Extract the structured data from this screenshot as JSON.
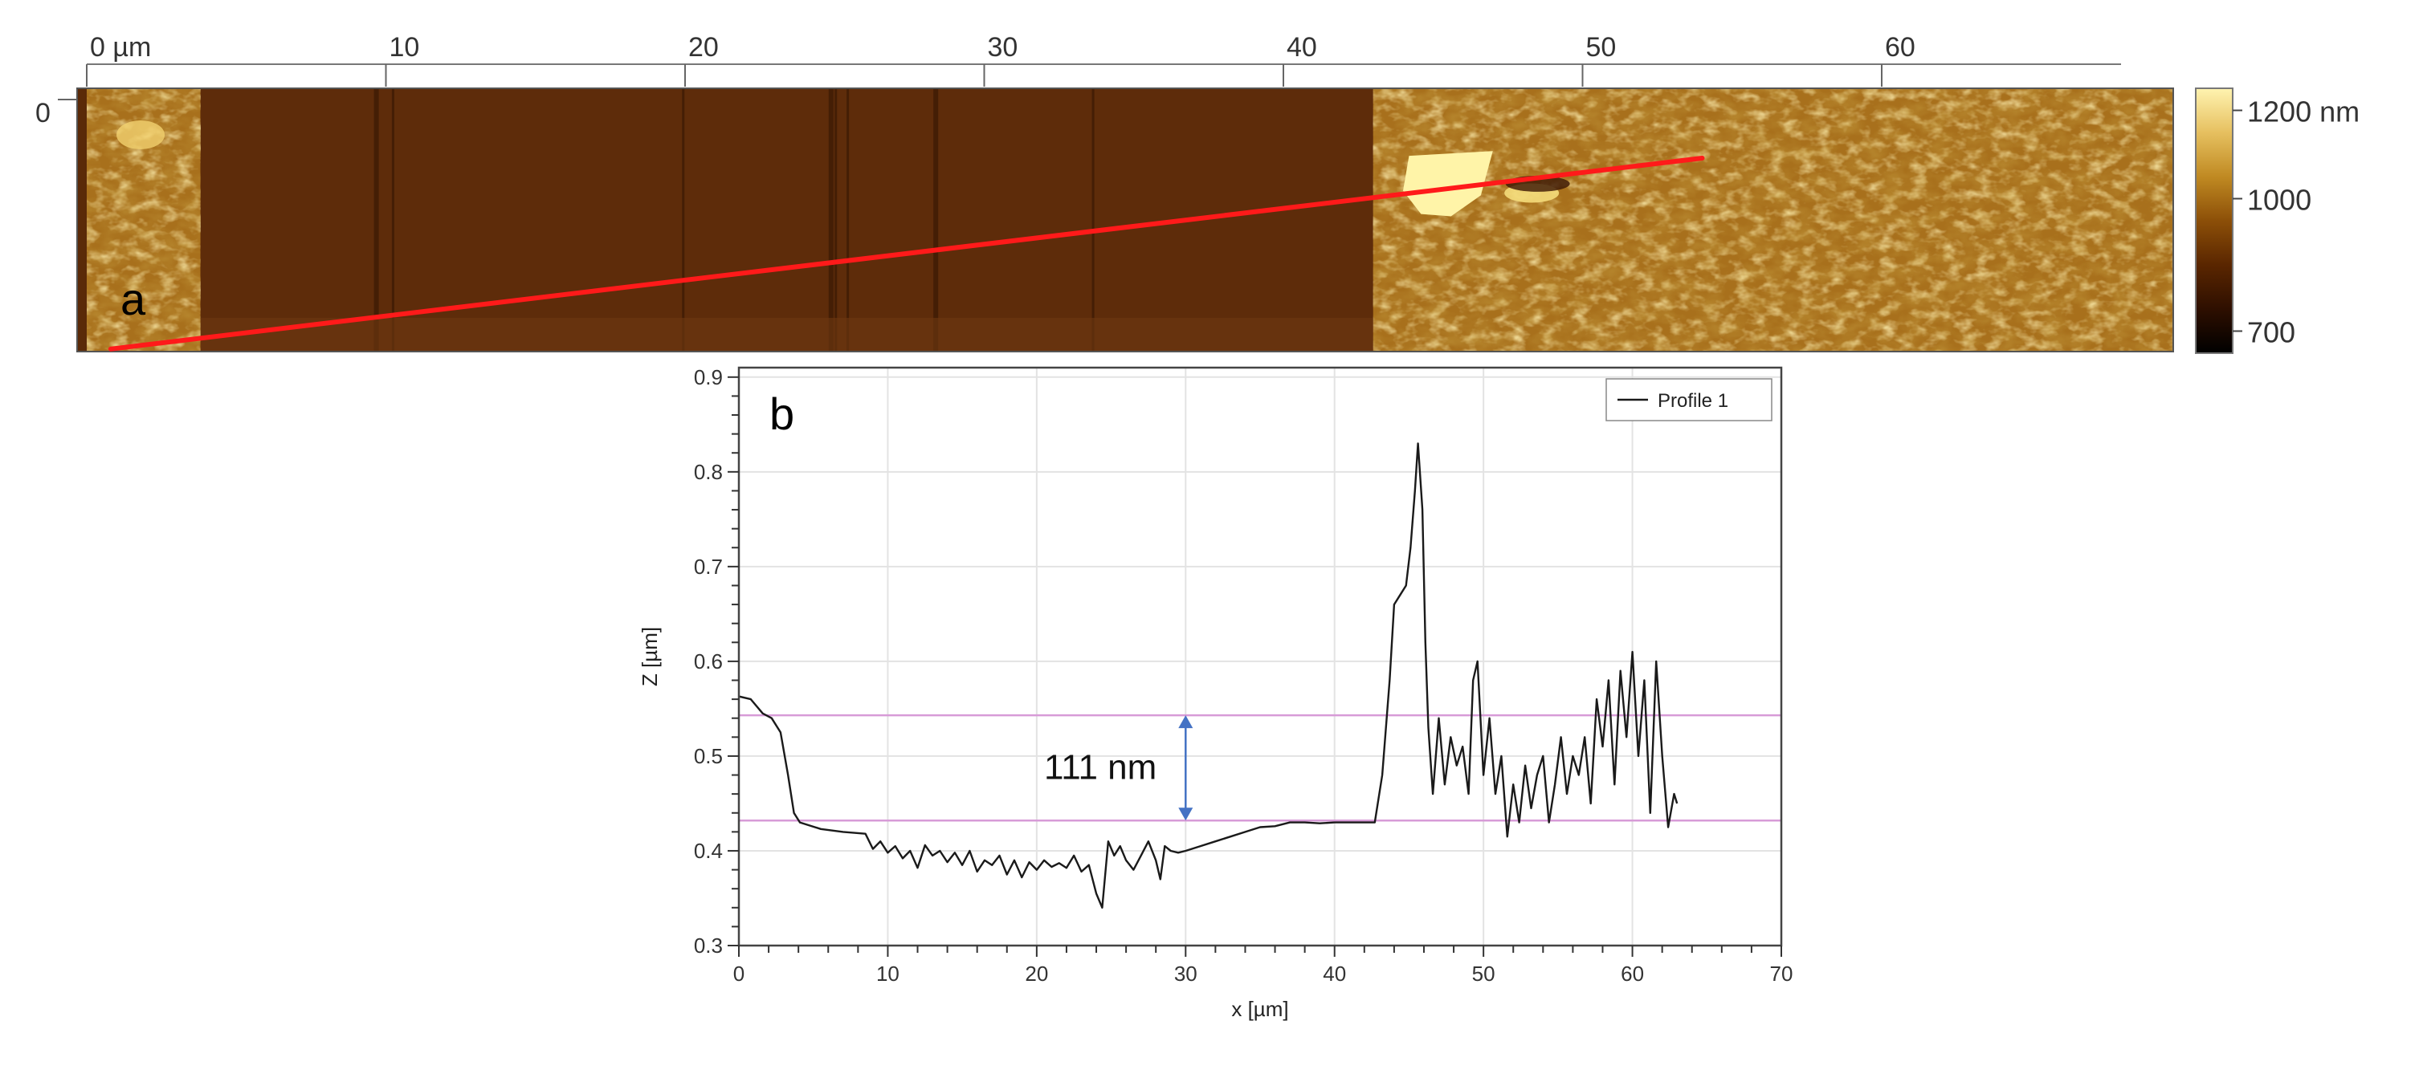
{
  "chart_data": [
    {
      "type": "heatmap",
      "panel_label": "a",
      "x_tick_labels": [
        "0 µm",
        "10",
        "20",
        "30",
        "40",
        "50",
        "60"
      ],
      "x_ticks": [
        0,
        10,
        20,
        30,
        40,
        50,
        60
      ],
      "xlim": [
        0,
        70
      ],
      "y_tick_labels": [
        "0"
      ],
      "colorbar": {
        "tick_labels": [
          "1200 nm",
          "1000",
          "700"
        ],
        "tick_values": [
          1200,
          1000,
          700
        ],
        "range": [
          650,
          1250
        ],
        "colors": [
          "#000000",
          "#2e0f00",
          "#5a2600",
          "#8c4f08",
          "#c08a22",
          "#e6c060",
          "#fff3b0"
        ]
      },
      "profile_line": {
        "color": "#ff1a1a",
        "start": {
          "x": 0.8,
          "y": 5.6
        },
        "end": {
          "x": 54,
          "y": 1.5
        }
      },
      "regions": [
        {
          "from": 0,
          "to": 3.8,
          "level": "high",
          "mean_nm": 1000
        },
        {
          "from": 3.8,
          "to": 43,
          "level": "low",
          "mean_nm": 790
        },
        {
          "from": 43,
          "to": 70,
          "level": "high",
          "mean_nm": 1010
        }
      ]
    },
    {
      "type": "line",
      "panel_label": "b",
      "xlabel": "x [µm]",
      "ylabel": "Z [µm]",
      "xlim": [
        0,
        70
      ],
      "ylim": [
        0.3,
        0.91
      ],
      "x_ticks": [
        0,
        10,
        20,
        30,
        40,
        50,
        60,
        70
      ],
      "y_ticks": [
        0.3,
        0.4,
        0.5,
        0.6,
        0.7,
        0.8,
        0.9
      ],
      "grid": true,
      "legend_position": "top-right",
      "series": [
        {
          "name": "Profile 1",
          "color": "#1a1a1a",
          "x": [
            0,
            0.8,
            1.6,
            2.2,
            2.8,
            3.3,
            3.7,
            4.1,
            5.5,
            7.0,
            8.5,
            9.0,
            9.5,
            10.0,
            10.5,
            11.0,
            11.5,
            12.0,
            12.5,
            13.0,
            13.5,
            14.0,
            14.5,
            15.0,
            15.5,
            16.0,
            16.5,
            17.0,
            17.5,
            18.0,
            18.5,
            19.0,
            19.5,
            20.0,
            20.5,
            21.0,
            21.5,
            22.0,
            22.5,
            23.0,
            23.5,
            24.0,
            24.4,
            24.8,
            25.2,
            25.6,
            26.0,
            26.5,
            27.0,
            27.5,
            28.0,
            28.3,
            28.6,
            29.0,
            29.5,
            30.0,
            31.0,
            32.0,
            33.0,
            34.0,
            35.0,
            36.0,
            37.0,
            38.0,
            39.0,
            40.0,
            41.0,
            42.0,
            42.7,
            43.2,
            43.7,
            44.0,
            44.4,
            44.8,
            45.1,
            45.4,
            45.6,
            45.9,
            46.1,
            46.3,
            46.6,
            47.0,
            47.4,
            47.8,
            48.2,
            48.6,
            49.0,
            49.3,
            49.6,
            50.0,
            50.4,
            50.8,
            51.2,
            51.6,
            52.0,
            52.4,
            52.8,
            53.2,
            53.6,
            54.0,
            54.4,
            54.8,
            55.2,
            55.6,
            56.0,
            56.4,
            56.8,
            57.2,
            57.6,
            58.0,
            58.4,
            58.8,
            59.2,
            59.6,
            60.0,
            60.4,
            60.8,
            61.2,
            61.6,
            62.0,
            62.4,
            62.8,
            63.0
          ],
          "y": [
            0.563,
            0.56,
            0.545,
            0.54,
            0.525,
            0.48,
            0.44,
            0.43,
            0.423,
            0.42,
            0.418,
            0.402,
            0.41,
            0.398,
            0.405,
            0.392,
            0.4,
            0.382,
            0.406,
            0.395,
            0.4,
            0.388,
            0.398,
            0.385,
            0.4,
            0.378,
            0.39,
            0.385,
            0.395,
            0.375,
            0.39,
            0.372,
            0.388,
            0.38,
            0.39,
            0.383,
            0.387,
            0.382,
            0.395,
            0.378,
            0.385,
            0.355,
            0.34,
            0.41,
            0.395,
            0.405,
            0.39,
            0.38,
            0.395,
            0.41,
            0.39,
            0.37,
            0.405,
            0.4,
            0.398,
            0.4,
            0.405,
            0.41,
            0.415,
            0.42,
            0.425,
            0.426,
            0.43,
            0.43,
            0.429,
            0.43,
            0.43,
            0.43,
            0.43,
            0.48,
            0.58,
            0.66,
            0.67,
            0.68,
            0.72,
            0.78,
            0.83,
            0.76,
            0.62,
            0.53,
            0.46,
            0.54,
            0.47,
            0.52,
            0.49,
            0.51,
            0.46,
            0.58,
            0.6,
            0.48,
            0.54,
            0.46,
            0.5,
            0.415,
            0.47,
            0.43,
            0.49,
            0.445,
            0.48,
            0.5,
            0.43,
            0.47,
            0.52,
            0.46,
            0.5,
            0.48,
            0.52,
            0.45,
            0.56,
            0.51,
            0.58,
            0.47,
            0.59,
            0.52,
            0.61,
            0.5,
            0.58,
            0.44,
            0.6,
            0.5,
            0.425,
            0.46,
            0.45
          ]
        }
      ],
      "reference_lines": [
        {
          "y": 0.432,
          "color": "#d79bd7"
        },
        {
          "y": 0.543,
          "color": "#d79bd7"
        }
      ],
      "step_annotation": {
        "label": "111 nm",
        "x": 30,
        "y_from": 0.432,
        "y_to": 0.543,
        "color": "#4472c4"
      }
    }
  ]
}
